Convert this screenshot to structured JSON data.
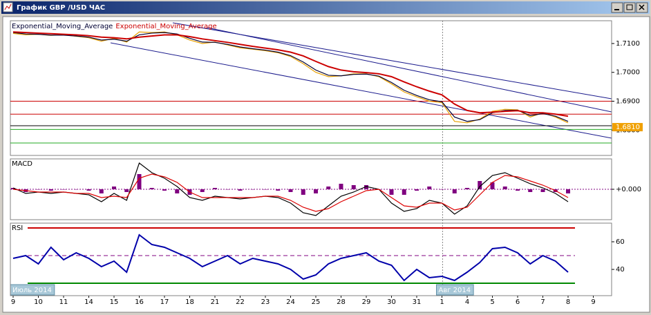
{
  "window": {
    "title": "График GBP /USD  ЧАС"
  },
  "x_axis": {
    "categories": [
      "9",
      "10",
      "11",
      "14",
      "15",
      "16",
      "17",
      "18",
      "21",
      "22",
      "23",
      "24",
      "25",
      "28",
      "29",
      "30",
      "31",
      "1",
      "4",
      "5",
      "6",
      "7",
      "8",
      "9"
    ],
    "months": [
      {
        "at": 0,
        "label": "Июль 2014"
      },
      {
        "at": 17,
        "label": "Авг 2014"
      }
    ]
  },
  "chart_data": [
    {
      "type": "price",
      "ylim": [
        1.6712,
        1.7179
      ],
      "yticks": [
        {
          "value": 1.71,
          "label": "1.7100"
        },
        {
          "value": 1.7,
          "label": "1.7000"
        },
        {
          "value": 1.69,
          "label": "1.6900"
        },
        {
          "value": 1.68,
          "label": "1.6800"
        }
      ],
      "price_marker": {
        "value": 1.681,
        "label": "1.6810",
        "color": "#f0a000"
      },
      "levels": [
        {
          "value": 1.69,
          "color": "#cc0000"
        },
        {
          "value": 1.6855,
          "color": "#cc0000"
        },
        {
          "value": 1.6815,
          "color": "#000000"
        },
        {
          "value": 1.6802,
          "color": "#22aa22"
        },
        {
          "value": 1.6755,
          "color": "#22aa22"
        }
      ],
      "series": [
        {
          "color": "#e8a000",
          "values": [
            1.7135,
            1.713,
            1.7132,
            1.7128,
            1.713,
            1.7125,
            1.712,
            1.7108,
            1.7118,
            1.7105,
            1.714,
            1.7138,
            1.714,
            1.713,
            1.7112,
            1.71,
            1.7105,
            1.7095,
            1.7085,
            1.708,
            1.7075,
            1.7068,
            1.7055,
            1.703,
            1.7,
            1.6985,
            1.6988,
            1.6995,
            1.6995,
            1.6985,
            1.696,
            1.6932,
            1.6915,
            1.69,
            1.6895,
            1.683,
            1.6825,
            1.6838,
            1.6865,
            1.6872,
            1.687,
            1.6845,
            1.686,
            1.6845,
            1.6825
          ]
        },
        {
          "name": "Exponential_Moving_Average",
          "color": "#000033",
          "values": [
            1.7138,
            1.7133,
            1.7132,
            1.7129,
            1.7129,
            1.7126,
            1.7122,
            1.7112,
            1.7115,
            1.7108,
            1.713,
            1.7136,
            1.7138,
            1.7133,
            1.7118,
            1.7105,
            1.7104,
            1.7097,
            1.7088,
            1.7082,
            1.7077,
            1.707,
            1.7058,
            1.7036,
            1.7008,
            1.699,
            1.6988,
            1.6993,
            1.6994,
            1.6987,
            1.6965,
            1.6938,
            1.692,
            1.6905,
            1.6898,
            1.6845,
            1.683,
            1.6836,
            1.686,
            1.6868,
            1.6869,
            1.685,
            1.6857,
            1.6848,
            1.683
          ]
        },
        {
          "name": "Exponential_Moving_Average",
          "color": "#cc0000",
          "values": [
            1.714,
            1.7138,
            1.7136,
            1.7134,
            1.7132,
            1.713,
            1.7127,
            1.7122,
            1.712,
            1.7116,
            1.7122,
            1.7126,
            1.713,
            1.713,
            1.7124,
            1.7116,
            1.711,
            1.7104,
            1.7097,
            1.709,
            1.7084,
            1.7078,
            1.707,
            1.7057,
            1.7038,
            1.702,
            1.7008,
            1.7002,
            1.6999,
            1.6995,
            1.6985,
            1.6967,
            1.695,
            1.6935,
            1.6922,
            1.689,
            1.6868,
            1.686,
            1.6862,
            1.6865,
            1.6867,
            1.686,
            1.686,
            1.6855,
            1.6848
          ]
        }
      ]
    },
    {
      "type": "macd",
      "title": "MACD",
      "ylim": [
        -0.0022,
        0.0022
      ],
      "yticks": [
        {
          "value": 0,
          "label": "+0.000"
        }
      ],
      "histogram": {
        "color": "#800080",
        "values": [
          0.0001,
          -0.0002,
          0,
          -0.0001,
          0,
          0,
          -0.0001,
          -0.0003,
          0.0002,
          -0.0002,
          0.0011,
          0.0001,
          -0.0001,
          -0.0003,
          -0.0004,
          -0.0002,
          0.0001,
          0,
          -0.0001,
          0,
          0,
          -0.0001,
          -0.0002,
          -0.0004,
          -0.0003,
          0.0002,
          0.0004,
          0.0003,
          0.0003,
          0,
          -0.0004,
          -0.0004,
          -0.0001,
          0.0002,
          0,
          -0.0003,
          0.0001,
          0.0006,
          0.0005,
          0.0002,
          -0.0001,
          -0.0002,
          -0.0002,
          -0.0002,
          -0.0003
        ]
      },
      "series": [
        {
          "color": "#000000",
          "values": [
            0.0001,
            -0.0003,
            -0.0002,
            -0.0003,
            -0.0002,
            -0.0003,
            -0.0004,
            -0.0009,
            -0.0003,
            -0.0008,
            0.0019,
            0.0012,
            0.0008,
            0.0002,
            -0.0006,
            -0.0008,
            -0.0005,
            -0.0006,
            -0.0007,
            -0.0006,
            -0.0005,
            -0.0006,
            -0.001,
            -0.0017,
            -0.0019,
            -0.0012,
            -0.0005,
            -0.0002,
            0.0002,
            0.0,
            -0.001,
            -0.0016,
            -0.0014,
            -0.0008,
            -0.001,
            -0.0018,
            -0.0012,
            0.0002,
            0.001,
            0.0012,
            0.0008,
            0.0004,
            0.0001,
            -0.0003,
            -0.0009
          ]
        },
        {
          "color": "#dd0000",
          "values": [
            0.0,
            -0.0001,
            -0.0002,
            -0.0002,
            -0.0002,
            -0.0003,
            -0.0003,
            -0.0006,
            -0.0005,
            -0.0006,
            0.0008,
            0.0011,
            0.0009,
            0.0005,
            -0.0002,
            -0.0006,
            -0.0006,
            -0.0006,
            -0.0006,
            -0.0006,
            -0.0005,
            -0.0005,
            -0.0008,
            -0.0013,
            -0.0016,
            -0.0014,
            -0.0009,
            -0.0005,
            -0.0001,
            0.0,
            -0.0006,
            -0.0012,
            -0.0013,
            -0.001,
            -0.001,
            -0.0015,
            -0.0013,
            -0.0004,
            0.0005,
            0.001,
            0.0009,
            0.0006,
            0.0003,
            -0.0001,
            -0.0006
          ]
        }
      ]
    },
    {
      "type": "rsi",
      "title": "RSI",
      "ylim": [
        21,
        73.5
      ],
      "yticks": [
        60,
        40
      ],
      "levels": [
        {
          "value": 70,
          "color": "#cc0000"
        },
        {
          "value": 50,
          "color": "#800080",
          "dashed": true
        },
        {
          "value": 30,
          "color": "#008800"
        }
      ],
      "series": [
        {
          "color": "#0000aa",
          "values": [
            48,
            50,
            44,
            56,
            47,
            52,
            48,
            42,
            46,
            38,
            65,
            58,
            56,
            52,
            48,
            42,
            46,
            50,
            44,
            48,
            46,
            44,
            40,
            33,
            36,
            44,
            48,
            50,
            52,
            46,
            43,
            32,
            40,
            34,
            35,
            32,
            38,
            45,
            55,
            56,
            52,
            44,
            50,
            46,
            38
          ]
        }
      ]
    }
  ]
}
